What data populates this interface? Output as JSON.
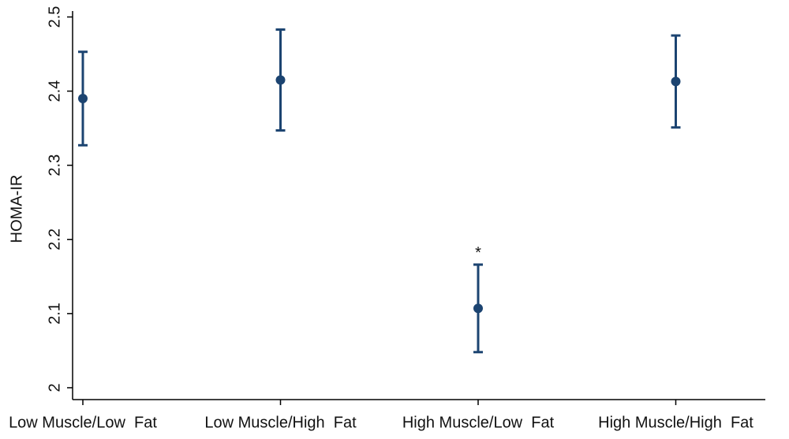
{
  "chart_data": {
    "type": "errorbar",
    "y_label": "HOMA-IR",
    "categories": [
      "Low Muscle/Low  Fat",
      "Low Muscle/High  Fat",
      "High Muscle/Low  Fat",
      "High Muscle/High  Fat"
    ],
    "series": [
      {
        "name": "HOMA-IR",
        "color": "#1c4471",
        "values": [
          2.39,
          2.415,
          2.107,
          2.413
        ],
        "errors": [
          0.063,
          0.068,
          0.059,
          0.062
        ]
      }
    ],
    "annotations": [
      {
        "text": "*",
        "category": "High Muscle/Low  Fat"
      }
    ],
    "ylim": [
      1.984,
      2.508
    ],
    "yticks": [
      2,
      2.1,
      2.2,
      2.3,
      2.4,
      2.5
    ],
    "grid": false
  }
}
